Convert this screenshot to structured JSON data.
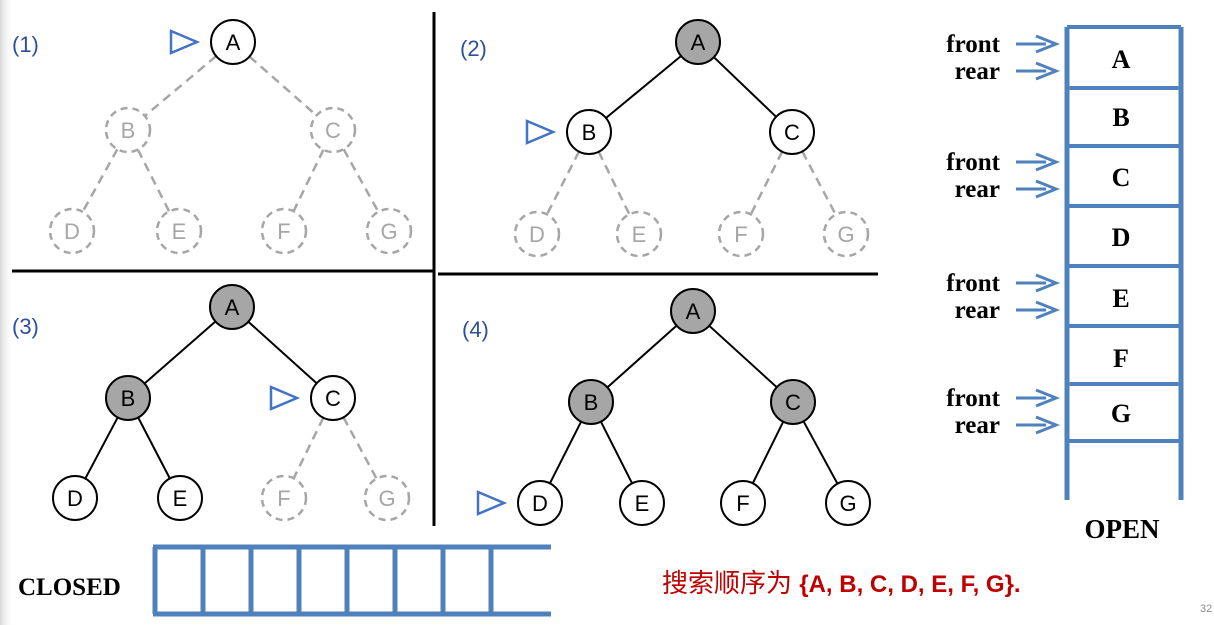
{
  "colors": {
    "visited_fill": "#a6a6a6",
    "node_stroke": "#000000",
    "dashed_stroke": "#a6a6a6",
    "pointer_blue": "#4472c4",
    "queue_blue": "#4f81bd",
    "result_red": "#c00000"
  },
  "panels": [
    {
      "label": "(1)",
      "pointer_at": "A",
      "nodes": [
        {
          "label": "A",
          "state": "plain"
        },
        {
          "label": "B",
          "state": "dashed"
        },
        {
          "label": "C",
          "state": "dashed"
        },
        {
          "label": "D",
          "state": "dashed"
        },
        {
          "label": "E",
          "state": "dashed"
        },
        {
          "label": "F",
          "state": "dashed"
        },
        {
          "label": "G",
          "state": "dashed"
        }
      ],
      "edges": [
        "dashed",
        "dashed",
        "dashed",
        "dashed",
        "dashed",
        "dashed"
      ]
    },
    {
      "label": "(2)",
      "pointer_at": "B",
      "nodes": [
        {
          "label": "A",
          "state": "visited"
        },
        {
          "label": "B",
          "state": "plain"
        },
        {
          "label": "C",
          "state": "plain"
        },
        {
          "label": "D",
          "state": "dashed"
        },
        {
          "label": "E",
          "state": "dashed"
        },
        {
          "label": "F",
          "state": "dashed"
        },
        {
          "label": "G",
          "state": "dashed"
        }
      ],
      "edges": [
        "solid",
        "solid",
        "dashed",
        "dashed",
        "dashed",
        "dashed"
      ]
    },
    {
      "label": "(3)",
      "pointer_at": "C",
      "nodes": [
        {
          "label": "A",
          "state": "visited"
        },
        {
          "label": "B",
          "state": "visited"
        },
        {
          "label": "C",
          "state": "plain"
        },
        {
          "label": "D",
          "state": "plain"
        },
        {
          "label": "E",
          "state": "plain"
        },
        {
          "label": "F",
          "state": "dashed"
        },
        {
          "label": "G",
          "state": "dashed"
        }
      ],
      "edges": [
        "solid",
        "solid",
        "solid",
        "solid",
        "dashed",
        "dashed"
      ]
    },
    {
      "label": "(4)",
      "pointer_at": "D",
      "nodes": [
        {
          "label": "A",
          "state": "visited"
        },
        {
          "label": "B",
          "state": "visited"
        },
        {
          "label": "C",
          "state": "visited"
        },
        {
          "label": "D",
          "state": "plain"
        },
        {
          "label": "E",
          "state": "plain"
        },
        {
          "label": "F",
          "state": "plain"
        },
        {
          "label": "G",
          "state": "plain"
        }
      ],
      "edges": [
        "solid",
        "solid",
        "solid",
        "solid",
        "solid",
        "solid"
      ]
    }
  ],
  "open_queue": {
    "title": "OPEN",
    "cells": [
      "A",
      "B",
      "C",
      "D",
      "E",
      "F",
      "G",
      ""
    ],
    "pointers": [
      {
        "front": "front",
        "rear": "rear",
        "cell": "A"
      },
      {
        "front": "front",
        "rear": "rear",
        "cell": "C"
      },
      {
        "front": "front",
        "rear": "rear",
        "cell": "E"
      },
      {
        "front": "front",
        "rear": "rear",
        "cell": "G"
      }
    ]
  },
  "closed": {
    "title": "CLOSED",
    "cell_count": 8
  },
  "result": {
    "prefix": "搜索顺序为 ",
    "sequence": "{A, B, C, D, E, F, G}."
  },
  "page_number": "32"
}
